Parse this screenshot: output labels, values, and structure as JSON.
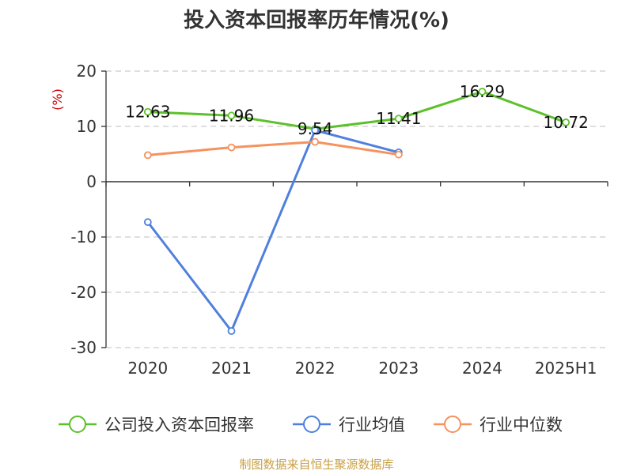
{
  "chart_data": {
    "type": "line",
    "title": "投入资本回报率历年情况(%)",
    "ylabel": "(%)",
    "xlabel": "",
    "categories": [
      "2020",
      "2021",
      "2022",
      "2023",
      "2024",
      "2025H1"
    ],
    "ylim": [
      -30,
      20
    ],
    "yticks": [
      20,
      10,
      0,
      -10,
      -20,
      -30
    ],
    "grid": true,
    "legend_position": "bottom",
    "series": [
      {
        "name": "公司投入资本回报率",
        "color": "#5cc12a",
        "values": [
          12.63,
          11.96,
          9.54,
          11.41,
          16.29,
          10.72
        ],
        "labels": [
          "12.63",
          "11.96",
          "9.54",
          "11.41",
          "16.29",
          "10.72"
        ]
      },
      {
        "name": "行业均值",
        "color": "#4f80dd",
        "values": [
          -7.3,
          -27.0,
          9.3,
          5.3,
          null,
          null
        ],
        "labels": []
      },
      {
        "name": "行业中位数",
        "color": "#f5925e",
        "values": [
          4.8,
          6.2,
          7.2,
          4.9,
          null,
          null
        ],
        "labels": []
      }
    ]
  },
  "footer": {
    "source": "制图数据来自恒生聚源数据库"
  },
  "colors": {
    "axis": "#333333",
    "grid": "#cccccc",
    "unit": "#cc0000",
    "source": "#c8a045"
  }
}
